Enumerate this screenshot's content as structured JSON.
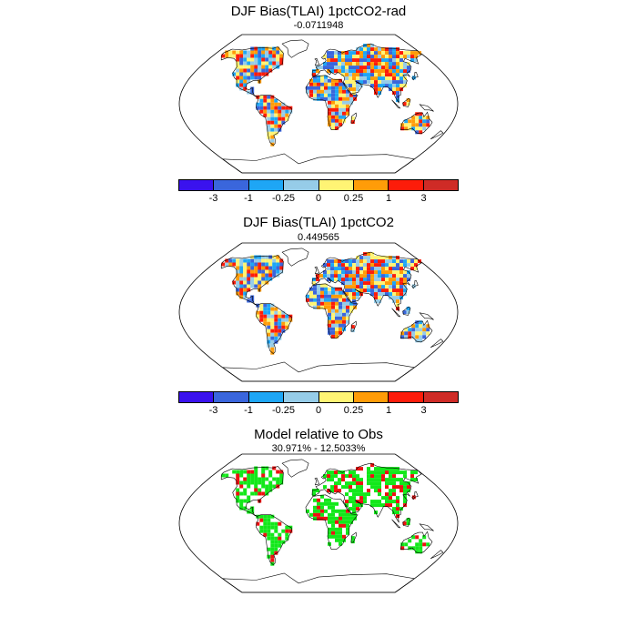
{
  "panels": [
    {
      "title": "DJF Bias(TLAI) 1pctCO2-rad",
      "subtitle": "-0.0711948"
    },
    {
      "title": "DJF Bias(TLAI) 1pctCO2",
      "subtitle": "0.449565"
    },
    {
      "title": "Model relative to Obs",
      "subtitle": "30.971% - 12.5033%"
    }
  ],
  "colorbar": {
    "colors": [
      "#3a12ee",
      "#3a66dc",
      "#1ea6f5",
      "#96cce8",
      "#fff474",
      "#ff9c08",
      "#fd1c0a",
      "#cf2b26"
    ],
    "labels": [
      "-3",
      "-1",
      "-0.25",
      "0",
      "0.25",
      "1",
      "3"
    ]
  },
  "map_legend": {
    "land_colors": [
      "#3a66dc",
      "#1ea6f5",
      "#96cce8",
      "#fff474",
      "#ff9c08",
      "#fd1c0a"
    ],
    "panel3_colors": [
      "#12e81a",
      "#ee1111",
      "#ffffff"
    ]
  }
}
